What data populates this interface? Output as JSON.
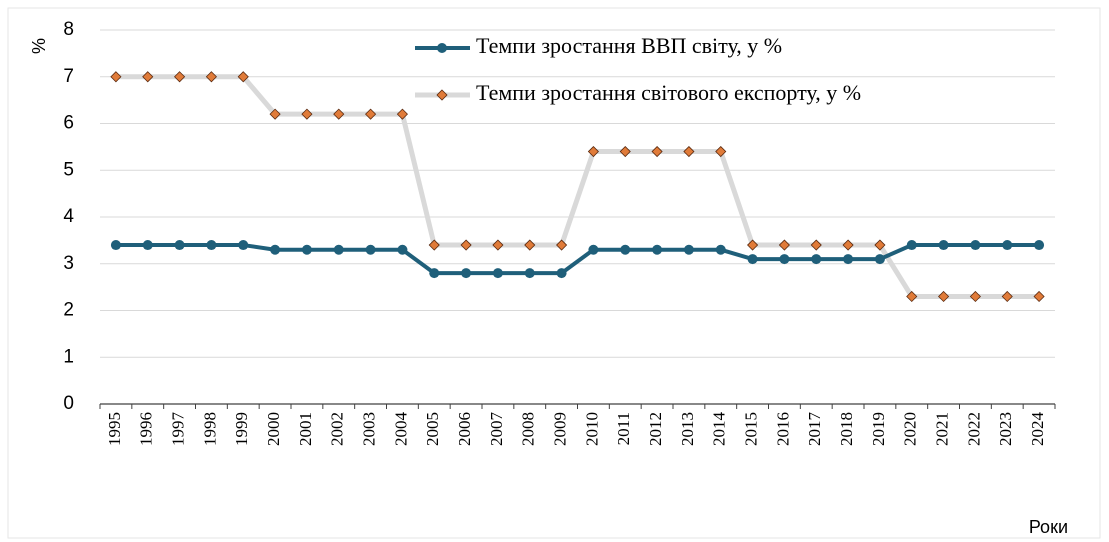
{
  "chart_data": {
    "type": "line",
    "y_label": "%",
    "x_label": "Роки",
    "categories": [
      "1995",
      "1996",
      "1997",
      "1998",
      "1999",
      "2000",
      "2001",
      "2002",
      "2003",
      "2004",
      "2005",
      "2006",
      "2007",
      "2008",
      "2009",
      "2010",
      "2011",
      "2012",
      "2013",
      "2014",
      "2015",
      "2016",
      "2017",
      "2018",
      "2019",
      "2020",
      "2021",
      "2022",
      "2023",
      "2024"
    ],
    "series": [
      {
        "name": "Темпи зростання ВВП світу, у %",
        "color": "#1f5f7a",
        "marker": "circle",
        "values": [
          3.4,
          3.4,
          3.4,
          3.4,
          3.4,
          3.3,
          3.3,
          3.3,
          3.3,
          3.3,
          2.8,
          2.8,
          2.8,
          2.8,
          2.8,
          3.3,
          3.3,
          3.3,
          3.3,
          3.3,
          3.1,
          3.1,
          3.1,
          3.1,
          3.1,
          3.4,
          3.4,
          3.4,
          3.4,
          3.4
        ]
      },
      {
        "name": "Темпи зростання світового експорту, у %",
        "color": "#d9d9d9",
        "marker_color": "#e07b39",
        "marker": "diamond",
        "values": [
          7.0,
          7.0,
          7.0,
          7.0,
          7.0,
          6.2,
          6.2,
          6.2,
          6.2,
          6.2,
          3.4,
          3.4,
          3.4,
          3.4,
          3.4,
          5.4,
          5.4,
          5.4,
          5.4,
          5.4,
          3.4,
          3.4,
          3.4,
          3.4,
          3.4,
          2.3,
          2.3,
          2.3,
          2.3,
          2.3
        ]
      }
    ],
    "ylim": [
      0,
      8
    ],
    "yticks": [
      0,
      1,
      2,
      3,
      4,
      5,
      6,
      7,
      8
    ],
    "grid": true,
    "legend": "top"
  }
}
